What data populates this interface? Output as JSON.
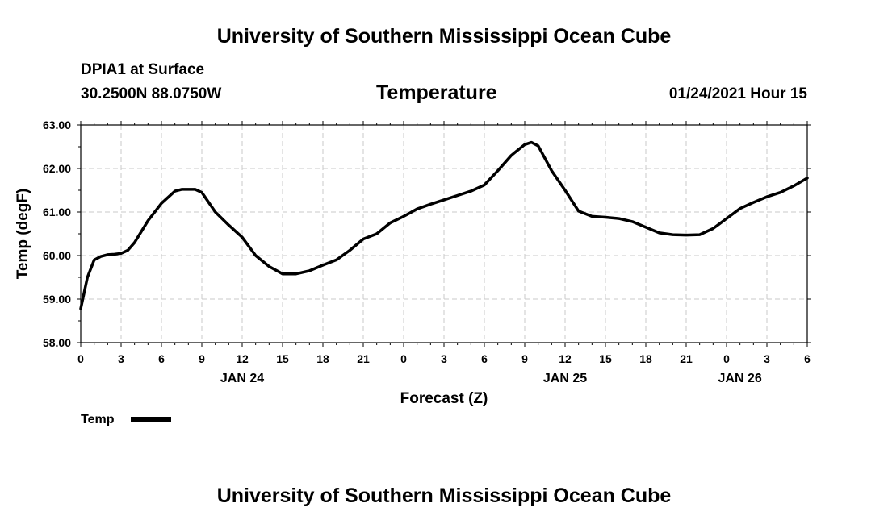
{
  "header": {
    "title_top": "University of Southern Mississippi Ocean Cube",
    "title_bottom": "University of Southern Mississippi Ocean Cube",
    "station": "DPIA1 at Surface",
    "coords": "30.2500N 88.0750W",
    "datetime": "01/24/2021 Hour 15"
  },
  "chart_data": {
    "type": "line",
    "title": "Temperature",
    "xlabel": "Forecast (Z)",
    "ylabel": "Temp (degF)",
    "ylim": [
      58.0,
      63.0
    ],
    "xlim": [
      0,
      54
    ],
    "grid": true,
    "y_ticks": [
      "58.00",
      "59.00",
      "60.00",
      "61.00",
      "62.00",
      "63.00"
    ],
    "x_tick_labels": [
      "0",
      "3",
      "6",
      "9",
      "12",
      "15",
      "18",
      "21",
      "0",
      "3",
      "6",
      "9",
      "12",
      "15",
      "18",
      "21",
      "0",
      "3",
      "6"
    ],
    "date_labels": [
      {
        "label": "JAN 24",
        "at_hour": 12
      },
      {
        "label": "JAN 25",
        "at_hour": 36
      },
      {
        "label": "JAN 26",
        "at_hour": 49
      }
    ],
    "legend": {
      "position": "bottom-left",
      "label": "Temp"
    },
    "series": [
      {
        "name": "Temp",
        "x": [
          0,
          0.5,
          1,
          1.5,
          2,
          2.5,
          3,
          3.5,
          4,
          5,
          6,
          7,
          7.5,
          8,
          8.5,
          9,
          10,
          11,
          12,
          13,
          14,
          15,
          16,
          17,
          18,
          19,
          20,
          21,
          22,
          23,
          24,
          25,
          26,
          27,
          28,
          29,
          30,
          31,
          32,
          33,
          33.5,
          34,
          35,
          36,
          37,
          38,
          39,
          40,
          41,
          42,
          43,
          44,
          45,
          46,
          47,
          48,
          49,
          50,
          51,
          52,
          53,
          54
        ],
        "y": [
          58.78,
          59.5,
          59.9,
          59.98,
          60.02,
          60.03,
          60.05,
          60.12,
          60.3,
          60.8,
          61.2,
          61.48,
          61.52,
          61.52,
          61.52,
          61.45,
          61.0,
          60.7,
          60.42,
          60.0,
          59.75,
          59.58,
          59.58,
          59.65,
          59.78,
          59.9,
          60.12,
          60.38,
          60.5,
          60.75,
          60.9,
          61.07,
          61.18,
          61.28,
          61.38,
          61.48,
          61.62,
          61.95,
          62.3,
          62.55,
          62.6,
          62.52,
          61.95,
          61.5,
          61.02,
          60.9,
          60.88,
          60.85,
          60.78,
          60.65,
          60.52,
          60.48,
          60.47,
          60.48,
          60.62,
          60.85,
          61.08,
          61.22,
          61.35,
          61.45,
          61.6,
          61.78
        ]
      }
    ]
  }
}
